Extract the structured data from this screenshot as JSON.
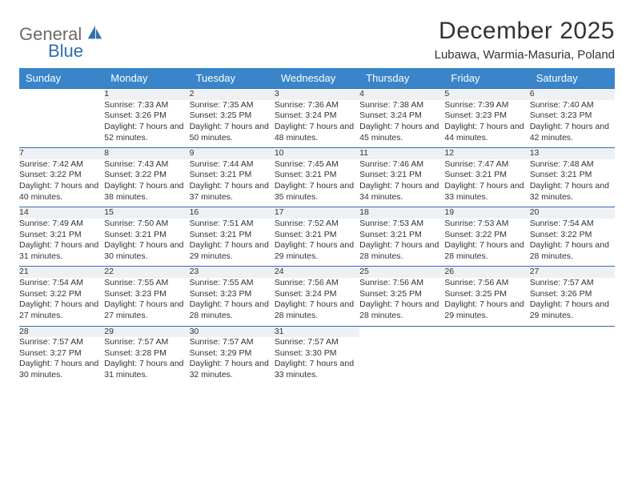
{
  "logo": {
    "word1": "General",
    "word2": "Blue"
  },
  "title": "December 2025",
  "location": "Lubawa, Warmia-Masuria, Poland",
  "colors": {
    "header_bg": "#3a85c9",
    "header_text": "#ffffff",
    "daynum_bg": "#eef1f4",
    "rule": "#2f6fb3",
    "logo_gray": "#6b6b6b",
    "logo_blue": "#2f6fb3",
    "body_text": "#333333"
  },
  "fonts": {
    "title_pt": 30,
    "location_pt": 15,
    "header_pt": 13,
    "daynum_pt": 12,
    "cell_pt": 10.5
  },
  "weekdays": [
    "Sunday",
    "Monday",
    "Tuesday",
    "Wednesday",
    "Thursday",
    "Friday",
    "Saturday"
  ],
  "weeks": [
    [
      null,
      {
        "n": "1",
        "sr": "7:33 AM",
        "ss": "3:26 PM",
        "dl": "7 hours and 52 minutes."
      },
      {
        "n": "2",
        "sr": "7:35 AM",
        "ss": "3:25 PM",
        "dl": "7 hours and 50 minutes."
      },
      {
        "n": "3",
        "sr": "7:36 AM",
        "ss": "3:24 PM",
        "dl": "7 hours and 48 minutes."
      },
      {
        "n": "4",
        "sr": "7:38 AM",
        "ss": "3:24 PM",
        "dl": "7 hours and 45 minutes."
      },
      {
        "n": "5",
        "sr": "7:39 AM",
        "ss": "3:23 PM",
        "dl": "7 hours and 44 minutes."
      },
      {
        "n": "6",
        "sr": "7:40 AM",
        "ss": "3:23 PM",
        "dl": "7 hours and 42 minutes."
      }
    ],
    [
      {
        "n": "7",
        "sr": "7:42 AM",
        "ss": "3:22 PM",
        "dl": "7 hours and 40 minutes."
      },
      {
        "n": "8",
        "sr": "7:43 AM",
        "ss": "3:22 PM",
        "dl": "7 hours and 38 minutes."
      },
      {
        "n": "9",
        "sr": "7:44 AM",
        "ss": "3:21 PM",
        "dl": "7 hours and 37 minutes."
      },
      {
        "n": "10",
        "sr": "7:45 AM",
        "ss": "3:21 PM",
        "dl": "7 hours and 35 minutes."
      },
      {
        "n": "11",
        "sr": "7:46 AM",
        "ss": "3:21 PM",
        "dl": "7 hours and 34 minutes."
      },
      {
        "n": "12",
        "sr": "7:47 AM",
        "ss": "3:21 PM",
        "dl": "7 hours and 33 minutes."
      },
      {
        "n": "13",
        "sr": "7:48 AM",
        "ss": "3:21 PM",
        "dl": "7 hours and 32 minutes."
      }
    ],
    [
      {
        "n": "14",
        "sr": "7:49 AM",
        "ss": "3:21 PM",
        "dl": "7 hours and 31 minutes."
      },
      {
        "n": "15",
        "sr": "7:50 AM",
        "ss": "3:21 PM",
        "dl": "7 hours and 30 minutes."
      },
      {
        "n": "16",
        "sr": "7:51 AM",
        "ss": "3:21 PM",
        "dl": "7 hours and 29 minutes."
      },
      {
        "n": "17",
        "sr": "7:52 AM",
        "ss": "3:21 PM",
        "dl": "7 hours and 29 minutes."
      },
      {
        "n": "18",
        "sr": "7:53 AM",
        "ss": "3:21 PM",
        "dl": "7 hours and 28 minutes."
      },
      {
        "n": "19",
        "sr": "7:53 AM",
        "ss": "3:22 PM",
        "dl": "7 hours and 28 minutes."
      },
      {
        "n": "20",
        "sr": "7:54 AM",
        "ss": "3:22 PM",
        "dl": "7 hours and 28 minutes."
      }
    ],
    [
      {
        "n": "21",
        "sr": "7:54 AM",
        "ss": "3:22 PM",
        "dl": "7 hours and 27 minutes."
      },
      {
        "n": "22",
        "sr": "7:55 AM",
        "ss": "3:23 PM",
        "dl": "7 hours and 27 minutes."
      },
      {
        "n": "23",
        "sr": "7:55 AM",
        "ss": "3:23 PM",
        "dl": "7 hours and 28 minutes."
      },
      {
        "n": "24",
        "sr": "7:56 AM",
        "ss": "3:24 PM",
        "dl": "7 hours and 28 minutes."
      },
      {
        "n": "25",
        "sr": "7:56 AM",
        "ss": "3:25 PM",
        "dl": "7 hours and 28 minutes."
      },
      {
        "n": "26",
        "sr": "7:56 AM",
        "ss": "3:25 PM",
        "dl": "7 hours and 29 minutes."
      },
      {
        "n": "27",
        "sr": "7:57 AM",
        "ss": "3:26 PM",
        "dl": "7 hours and 29 minutes."
      }
    ],
    [
      {
        "n": "28",
        "sr": "7:57 AM",
        "ss": "3:27 PM",
        "dl": "7 hours and 30 minutes."
      },
      {
        "n": "29",
        "sr": "7:57 AM",
        "ss": "3:28 PM",
        "dl": "7 hours and 31 minutes."
      },
      {
        "n": "30",
        "sr": "7:57 AM",
        "ss": "3:29 PM",
        "dl": "7 hours and 32 minutes."
      },
      {
        "n": "31",
        "sr": "7:57 AM",
        "ss": "3:30 PM",
        "dl": "7 hours and 33 minutes."
      },
      null,
      null,
      null
    ]
  ]
}
